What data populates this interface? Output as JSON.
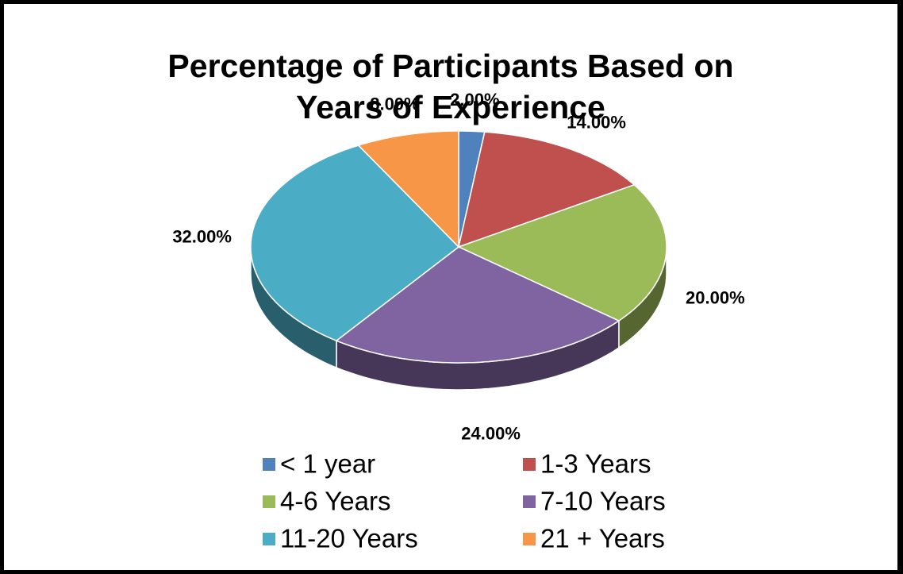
{
  "chart_data": {
    "type": "pie3d",
    "title": "Percentage of Participants Based on Years of Experience",
    "categories": [
      "< 1 year",
      "1-3 Years",
      "4-6 Years",
      "7-10 Years",
      "11-20 Years",
      "21 + Years"
    ],
    "values": [
      2,
      14,
      20,
      24,
      32,
      8
    ],
    "value_labels": [
      "2.00%",
      "14.00%",
      "20.00%",
      "24.00%",
      "32.00%",
      "8.00%"
    ],
    "colors": [
      "#4f81bd",
      "#c0504d",
      "#9bbb59",
      "#8064a2",
      "#4bacc6",
      "#f79646"
    ],
    "legend": "bottom"
  }
}
